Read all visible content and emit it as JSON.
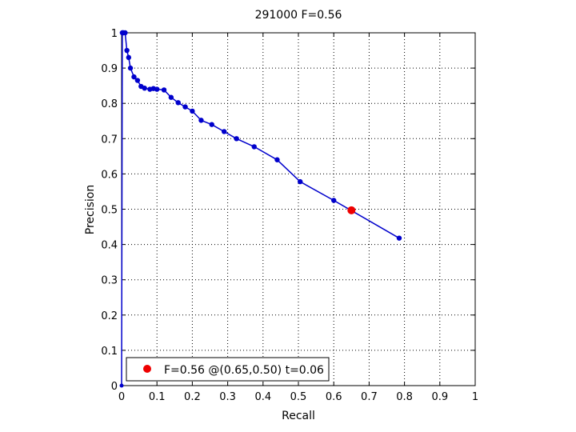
{
  "chart_data": {
    "type": "line",
    "title": "291000 F=0.56",
    "xlabel": "Recall",
    "ylabel": "Precision",
    "xlim": [
      0,
      1
    ],
    "ylim": [
      0,
      1
    ],
    "xticks": [
      "0",
      "0.1",
      "0.2",
      "0.3",
      "0.4",
      "0.5",
      "0.6",
      "0.7",
      "0.8",
      "0.9",
      "1"
    ],
    "yticks": [
      "0",
      "0.1",
      "0.2",
      "0.3",
      "0.4",
      "0.5",
      "0.6",
      "0.7",
      "0.8",
      "0.9",
      "1"
    ],
    "grid": true,
    "grid_style": "dotted",
    "legend_position": "bottom-left",
    "series": [
      {
        "color": "#0000cc",
        "markers": "dots",
        "x": [
          0.785,
          0.6,
          0.505,
          0.44,
          0.375,
          0.325,
          0.29,
          0.255,
          0.225,
          0.2,
          0.18,
          0.16,
          0.14,
          0.12,
          0.1,
          0.09,
          0.08,
          0.065,
          0.055,
          0.045,
          0.035,
          0.025,
          0.02,
          0.015,
          0.01,
          0.005,
          0.003,
          0.002,
          0.0
        ],
        "y": [
          0.418,
          0.525,
          0.578,
          0.64,
          0.677,
          0.7,
          0.72,
          0.74,
          0.752,
          0.778,
          0.79,
          0.802,
          0.817,
          0.838,
          0.84,
          0.842,
          0.84,
          0.843,
          0.848,
          0.865,
          0.875,
          0.9,
          0.93,
          0.95,
          1.0,
          1.0,
          1.0,
          1.0,
          0.0
        ]
      }
    ],
    "best_point": {
      "x": 0.65,
      "y": 0.497,
      "color": "#ee0000"
    },
    "legend": {
      "label": "F=0.56 @(0.65,0.50) t=0.06",
      "marker_color": "#ee0000"
    }
  }
}
